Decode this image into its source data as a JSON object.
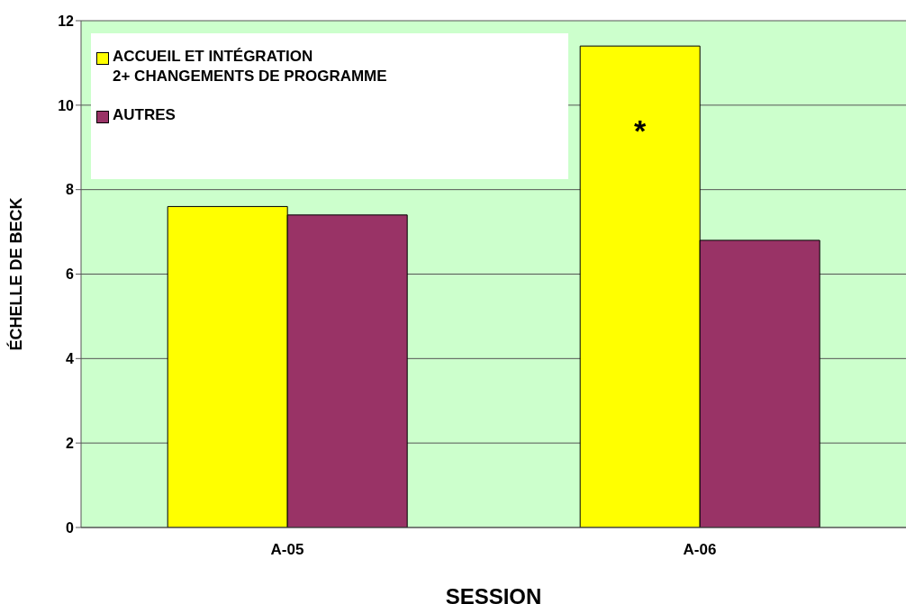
{
  "chart_data": {
    "type": "bar",
    "xlabel": "SESSION",
    "ylabel": "ÉCHELLE DE BECK",
    "categories": [
      "A-05",
      "A-06"
    ],
    "series": [
      {
        "name": "ACCUEIL ET INTÉGRATION\n2+ CHANGEMENTS DE PROGRAMME",
        "color": "#ffff00",
        "values": [
          7.6,
          11.4
        ]
      },
      {
        "name": "AUTRES",
        "color": "#993366",
        "values": [
          7.4,
          6.8
        ]
      }
    ],
    "ylim": [
      0,
      12
    ],
    "yticks": [
      0,
      2,
      4,
      6,
      8,
      10,
      12
    ],
    "grid": "y",
    "legend": "top left",
    "annotations": [
      {
        "text": "*",
        "x": "A-06",
        "y": 9.4
      }
    ]
  }
}
